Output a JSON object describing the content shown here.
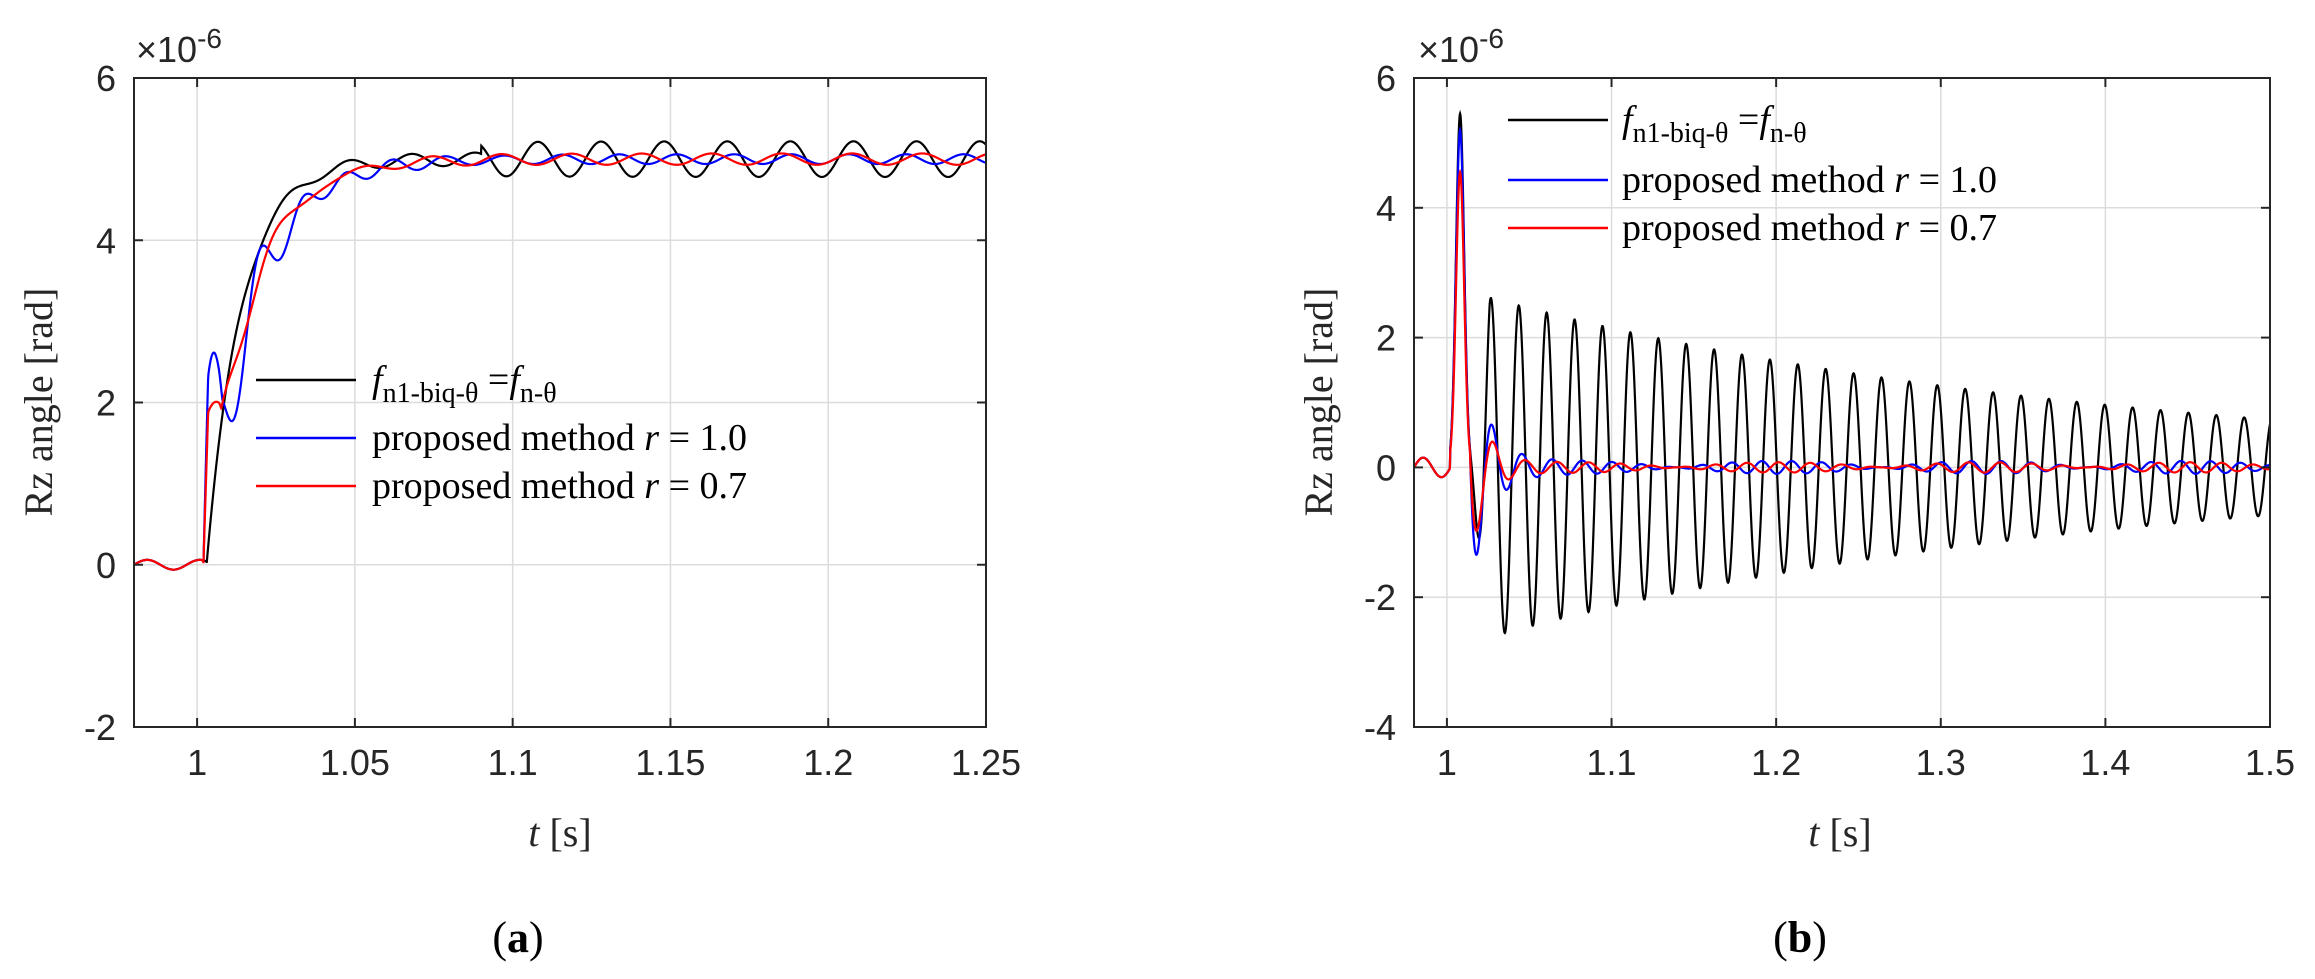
{
  "chart_data": [
    {
      "type": "line",
      "panel": "a",
      "caption_letter": "a",
      "exponent_label": "×10",
      "exponent_power": "-6",
      "xlabel_var": "t",
      "xlabel_unit": " [s]",
      "ylabel": "Rz angle [rad]",
      "xlim": [
        0.98,
        1.25
      ],
      "ylim": [
        -2,
        6
      ],
      "xticks": [
        1,
        1.05,
        1.1,
        1.15,
        1.2,
        1.25
      ],
      "xtick_labels": [
        "1",
        "1.05",
        "1.1",
        "1.15",
        "1.2",
        "1.25"
      ],
      "yticks": [
        -2,
        0,
        2,
        4,
        6
      ],
      "ytick_labels": [
        "-2",
        "0",
        "2",
        "4",
        "6"
      ],
      "legend_position": "center",
      "series": [
        {
          "name": "f_n1-biq-θ = f_n-θ",
          "color": "#000000",
          "model": {
            "kind": "step",
            "t0": 1.003,
            "final": 5.0,
            "tau": 0.011,
            "ring_amp": 0.22,
            "ring_freq": 50,
            "ring_phase": 0.0,
            "ring_growth_start": 1.09
          }
        },
        {
          "name": "proposed method r = 1.0",
          "color": "#0000ff",
          "model": {
            "kind": "step",
            "t0": 1.002,
            "final": 5.0,
            "tau": 0.015,
            "jump": 1.7,
            "osc_amp": 1.1,
            "osc_freq": 70,
            "osc_decay": 0.018,
            "ring_amp": 0.06,
            "ring_freq": 55
          }
        },
        {
          "name": "proposed method r = 0.7",
          "color": "#ff0000",
          "model": {
            "kind": "step",
            "t0": 1.002,
            "final": 5.0,
            "tau": 0.014,
            "jump": 1.7,
            "osc_amp": 0.4,
            "osc_freq": 55,
            "osc_decay": 0.015,
            "ring_amp": 0.07,
            "ring_freq": 45
          }
        }
      ]
    },
    {
      "type": "line",
      "panel": "b",
      "caption_letter": "b",
      "exponent_label": "×10",
      "exponent_power": "-6",
      "xlabel_var": "t",
      "xlabel_unit": " [s]",
      "ylabel": "Rz angle [rad]",
      "xlim": [
        0.98,
        1.5
      ],
      "ylim": [
        -4,
        6
      ],
      "xticks": [
        1,
        1.1,
        1.2,
        1.3,
        1.4,
        1.5
      ],
      "xtick_labels": [
        "1",
        "1.1",
        "1.2",
        "1.3",
        "1.4",
        "1.5"
      ],
      "yticks": [
        -4,
        -2,
        0,
        2,
        4,
        6
      ],
      "ytick_labels": [
        "-4",
        "-2",
        "0",
        "2",
        "4",
        "6"
      ],
      "legend_position": "top-left",
      "series": [
        {
          "name": "f_n1-biq-θ = f_n-θ",
          "color": "#000000",
          "model": {
            "kind": "impulse",
            "peak_t": 1.008,
            "peak": 5.45,
            "ring_start": 1.018,
            "ring_amp": 2.7,
            "ring_end_amp": 0.75,
            "ring_freq": 59
          }
        },
        {
          "name": "proposed method r = 1.0",
          "color": "#0000ff",
          "model": {
            "kind": "impulse",
            "peak_t": 1.008,
            "peak": 5.2,
            "ring_start": 1.018,
            "ring_amp": 1.9,
            "ring_decay": 0.012,
            "ring_freq": 55,
            "tail_amp": 0.1
          }
        },
        {
          "name": "proposed method r = 0.7",
          "color": "#ff0000",
          "model": {
            "kind": "impulse",
            "peak_t": 1.008,
            "peak": 4.55,
            "ring_start": 1.018,
            "ring_amp": 1.5,
            "ring_decay": 0.01,
            "ring_freq": 52,
            "tail_amp": 0.08
          }
        }
      ]
    }
  ],
  "legend": {
    "entry1_f": "f",
    "entry1_sub1": "n1-biq-θ",
    "entry1_eq": " =",
    "entry1_sub2": "n-θ",
    "entry2_text": "proposed method ",
    "entry2_r": "r",
    "entry2_value": " = 1.0",
    "entry3_text": "proposed method ",
    "entry3_r": "r",
    "entry3_value": " = 0.7"
  }
}
